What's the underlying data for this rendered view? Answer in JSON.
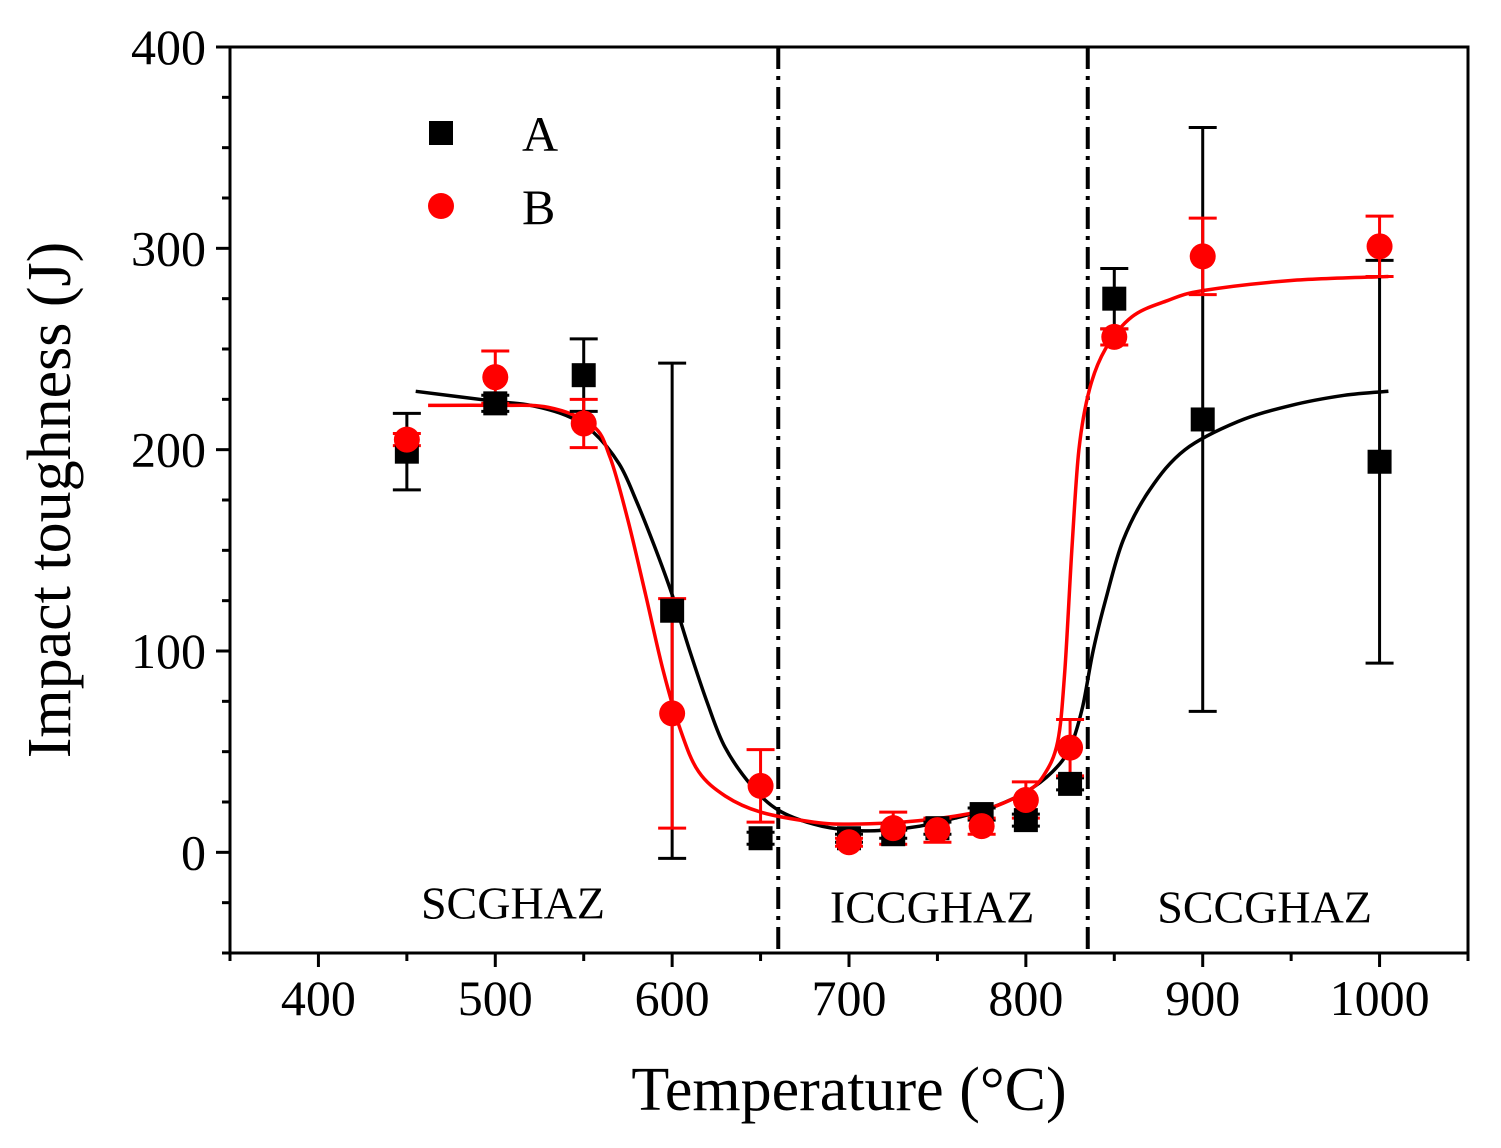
{
  "chart_data": {
    "type": "scatter",
    "title": "",
    "xlabel": "Temperature (°C)",
    "ylabel": "Impact toughness (J)",
    "xlim": [
      350,
      1050
    ],
    "ylim": [
      -50,
      400
    ],
    "xticks": [
      400,
      500,
      600,
      700,
      800,
      900,
      1000
    ],
    "yticks": [
      0,
      100,
      200,
      300,
      400
    ],
    "xtick_labels": [
      "400",
      "500",
      "600",
      "700",
      "800",
      "900",
      "1000"
    ],
    "ytick_labels": [
      "0",
      "100",
      "200",
      "300",
      "400"
    ],
    "x_minor_step": 50,
    "y_minor_step": 25,
    "grid": false,
    "legend_position": "top-left",
    "vertical_lines": [
      {
        "x": 660,
        "style": "dash-dot"
      },
      {
        "x": 835,
        "style": "dash-dot"
      }
    ],
    "regions": [
      {
        "label": "SCGHAZ",
        "x": 510,
        "y": -25
      },
      {
        "label": "ICCGHAZ",
        "x": 747,
        "y": -27
      },
      {
        "label": "SCCGHAZ",
        "x": 935,
        "y": -27
      }
    ],
    "series": [
      {
        "name": "A",
        "marker": "square",
        "color": "#000000",
        "x": [
          450,
          500,
          550,
          600,
          650,
          700,
          725,
          750,
          775,
          800,
          825,
          850,
          900,
          1000
        ],
        "y": [
          199,
          223,
          237,
          120,
          7,
          7,
          9,
          12,
          19,
          16,
          34,
          275,
          215,
          194
        ],
        "err": [
          19,
          4,
          18,
          123,
          3,
          2,
          2,
          3,
          3,
          3,
          3,
          15,
          145,
          100
        ],
        "fit_points": [
          [
            455,
            229
          ],
          [
            500,
            224
          ],
          [
            520,
            222
          ],
          [
            540,
            217
          ],
          [
            555,
            209
          ],
          [
            570,
            193
          ],
          [
            580,
            174
          ],
          [
            590,
            152
          ],
          [
            600,
            128
          ],
          [
            610,
            100
          ],
          [
            620,
            74
          ],
          [
            630,
            52
          ],
          [
            645,
            33
          ],
          [
            660,
            21
          ],
          [
            680,
            14
          ],
          [
            700,
            11
          ],
          [
            720,
            11
          ],
          [
            740,
            13
          ],
          [
            760,
            17
          ],
          [
            780,
            22
          ],
          [
            800,
            30
          ],
          [
            815,
            40
          ],
          [
            825,
            52
          ],
          [
            832,
            72
          ],
          [
            838,
            100
          ],
          [
            845,
            125
          ],
          [
            855,
            155
          ],
          [
            870,
            180
          ],
          [
            890,
            200
          ],
          [
            920,
            214
          ],
          [
            950,
            222
          ],
          [
            980,
            227
          ],
          [
            1005,
            229
          ]
        ]
      },
      {
        "name": "B",
        "marker": "circle",
        "color": "#ff0000",
        "x": [
          450,
          500,
          550,
          600,
          650,
          700,
          725,
          750,
          775,
          800,
          825,
          850,
          900,
          1000
        ],
        "y": [
          205,
          236,
          213,
          69,
          33,
          5,
          12,
          11,
          13,
          26,
          52,
          256,
          296,
          301
        ],
        "err": [
          3,
          13,
          12,
          57,
          18,
          2,
          8,
          6,
          4,
          9,
          14,
          4,
          19,
          15
        ],
        "fit_points": [
          [
            462,
            222
          ],
          [
            500,
            222
          ],
          [
            530,
            221
          ],
          [
            555,
            212
          ],
          [
            565,
            196
          ],
          [
            575,
            165
          ],
          [
            585,
            128
          ],
          [
            595,
            90
          ],
          [
            605,
            60
          ],
          [
            615,
            40
          ],
          [
            630,
            28
          ],
          [
            650,
            20
          ],
          [
            680,
            15
          ],
          [
            700,
            14
          ],
          [
            730,
            15
          ],
          [
            760,
            18
          ],
          [
            780,
            22
          ],
          [
            800,
            30
          ],
          [
            810,
            38
          ],
          [
            818,
            55
          ],
          [
            822,
            90
          ],
          [
            826,
            150
          ],
          [
            830,
            200
          ],
          [
            836,
            230
          ],
          [
            845,
            250
          ],
          [
            860,
            266
          ],
          [
            880,
            274
          ],
          [
            900,
            279
          ],
          [
            950,
            284
          ],
          [
            1005,
            286
          ]
        ]
      }
    ]
  }
}
